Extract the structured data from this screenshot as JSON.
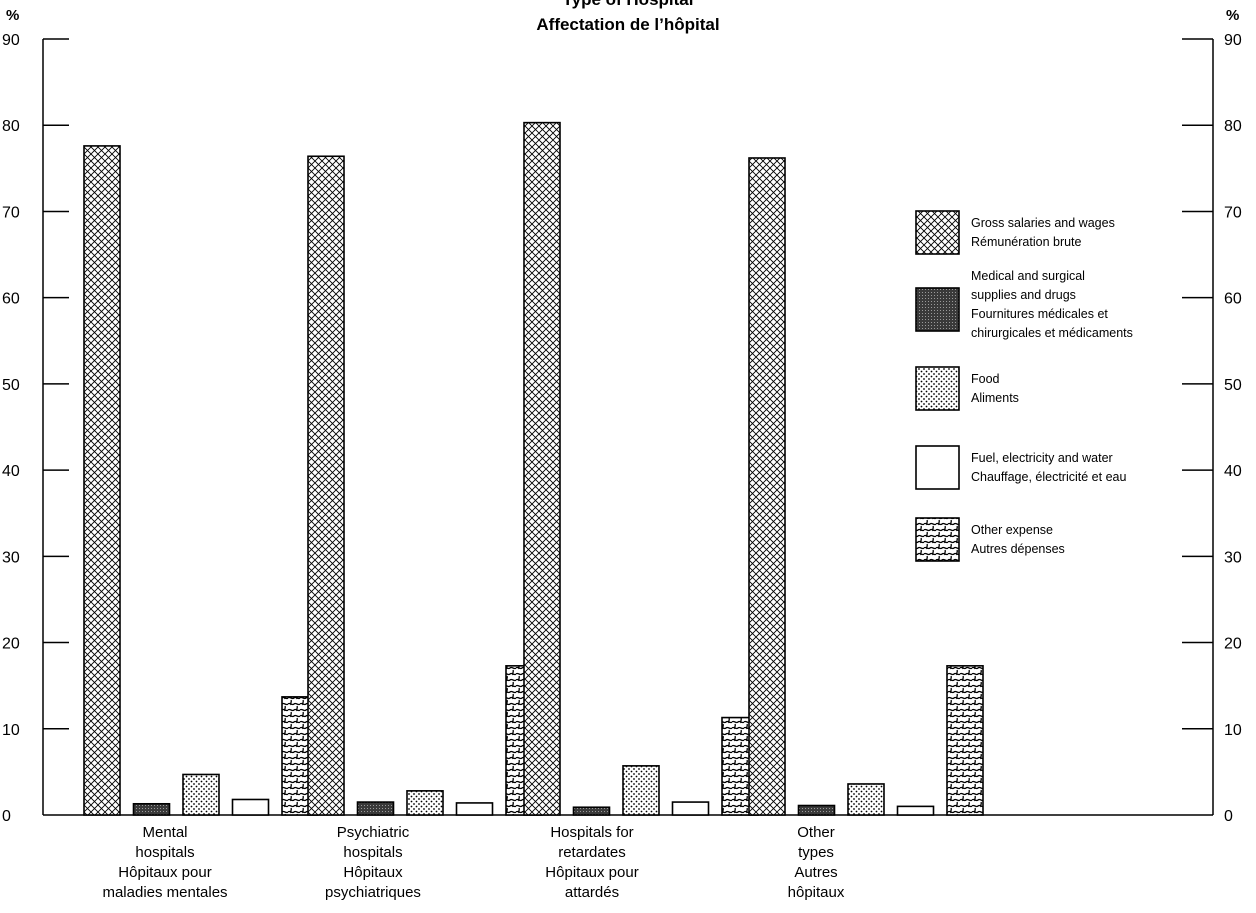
{
  "chart_data": {
    "type": "bar",
    "title": [
      "Type of Hospital",
      "Affectation de l’hôpital"
    ],
    "y_unit_label": "%",
    "ylim": [
      0,
      90
    ],
    "y_ticks": [
      0,
      10,
      20,
      30,
      40,
      50,
      60,
      70,
      80,
      90
    ],
    "grid": false,
    "legend_position": "right",
    "categories": [
      [
        "Mental",
        "hospitals",
        "Hôpitaux pour",
        "maladies mentales"
      ],
      [
        "Psychiatric",
        "hospitals",
        "Hôpitaux",
        "psychiatriques"
      ],
      [
        "Hospitals for",
        "retardates",
        "Hôpitaux pour",
        "attardés"
      ],
      [
        "Other",
        "types",
        "Autres",
        "hôpitaux"
      ]
    ],
    "series": [
      {
        "name": [
          "Gross salaries and wages",
          "Rémunération brute"
        ],
        "pattern": "crosshatch",
        "values": [
          77.6,
          76.4,
          80.3,
          76.2
        ]
      },
      {
        "name": [
          "Medical and surgical",
          "supplies and drugs",
          "Fournitures médicales et",
          "chirurgicales et médicaments"
        ],
        "pattern": "dark",
        "values": [
          1.3,
          1.5,
          0.9,
          1.1
        ]
      },
      {
        "name": [
          "Food",
          "Aliments"
        ],
        "pattern": "dots",
        "values": [
          4.7,
          2.8,
          5.7,
          3.6
        ]
      },
      {
        "name": [
          "Fuel, electricity and water",
          "Chauffage, électricité et eau"
        ],
        "pattern": "white",
        "values": [
          1.8,
          1.4,
          1.5,
          1.0
        ]
      },
      {
        "name": [
          "Other expense",
          "Autres dépenses"
        ],
        "pattern": "squiggle",
        "values": [
          13.7,
          17.3,
          11.3,
          17.3
        ]
      }
    ]
  }
}
